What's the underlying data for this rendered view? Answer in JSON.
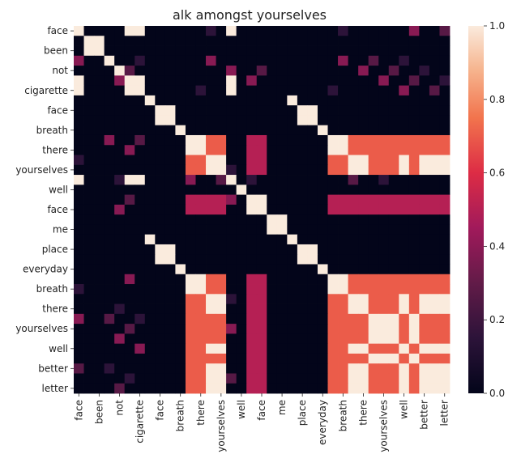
{
  "chart_data": {
    "type": "heatmap",
    "title": "alk amongst yourselves",
    "xlabel": "",
    "ylabel": "",
    "row_labels": [
      "face",
      "been",
      "not",
      "cigarette",
      "face",
      "breath",
      "there",
      "yourselves",
      "well",
      "face",
      "me",
      "place",
      "everyday",
      "breath",
      "there",
      "yourselves",
      "well",
      "better",
      "letter"
    ],
    "col_labels": [
      "face",
      "been",
      "not",
      "cigarette",
      "face",
      "breath",
      "there",
      "yourselves",
      "well",
      "face",
      "me",
      "place",
      "everyday",
      "breath",
      "there",
      "yourselves",
      "well",
      "better",
      "letter"
    ],
    "tokens": [
      "face",
      "been",
      "been",
      "not",
      "cigarette",
      "face",
      "face",
      "breath",
      "there",
      "there",
      "yourselves",
      "well",
      "well",
      "better",
      "better",
      "face",
      "me",
      "place",
      "place",
      "everyday",
      "everyday",
      "breath",
      "there",
      "there",
      "yourselves",
      "well",
      "well",
      "better",
      "better",
      "letter",
      "letter",
      "letter",
      "better",
      "letter",
      "better",
      "better",
      "better"
    ],
    "values": [],
    "colorbar": {
      "min": 0.0,
      "max": 1.0,
      "ticks": [
        "0.0",
        "0.2",
        "0.4",
        "0.6",
        "0.8",
        "1.0"
      ]
    },
    "colormap": "rocket",
    "grid": false,
    "legend": "colorbar-right"
  }
}
